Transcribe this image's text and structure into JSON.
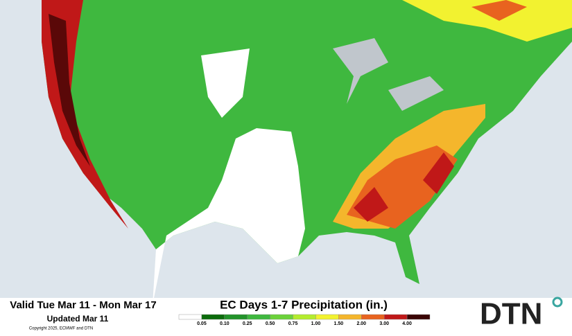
{
  "header": {
    "valid": "Valid Tue Mar 11 - Mon Mar 17",
    "updated": "Updated Mar 11",
    "copyright": "Copyright 2025, ECMWF and DTN",
    "title": "EC Days 1-7 Precipitation (in.)"
  },
  "legend": {
    "labels": [
      "0.05",
      "0.10",
      "0.25",
      "0.50",
      "0.75",
      "1.00",
      "1.50",
      "2.00",
      "3.00",
      "4.00"
    ],
    "colors": [
      "#ffffff",
      "#0b6b0b",
      "#22932a",
      "#3fb83f",
      "#6bd23a",
      "#b4ec2e",
      "#f2f230",
      "#f4b62c",
      "#e8631f",
      "#c01818",
      "#3a0404"
    ]
  },
  "logo": {
    "text": "DTN"
  }
}
